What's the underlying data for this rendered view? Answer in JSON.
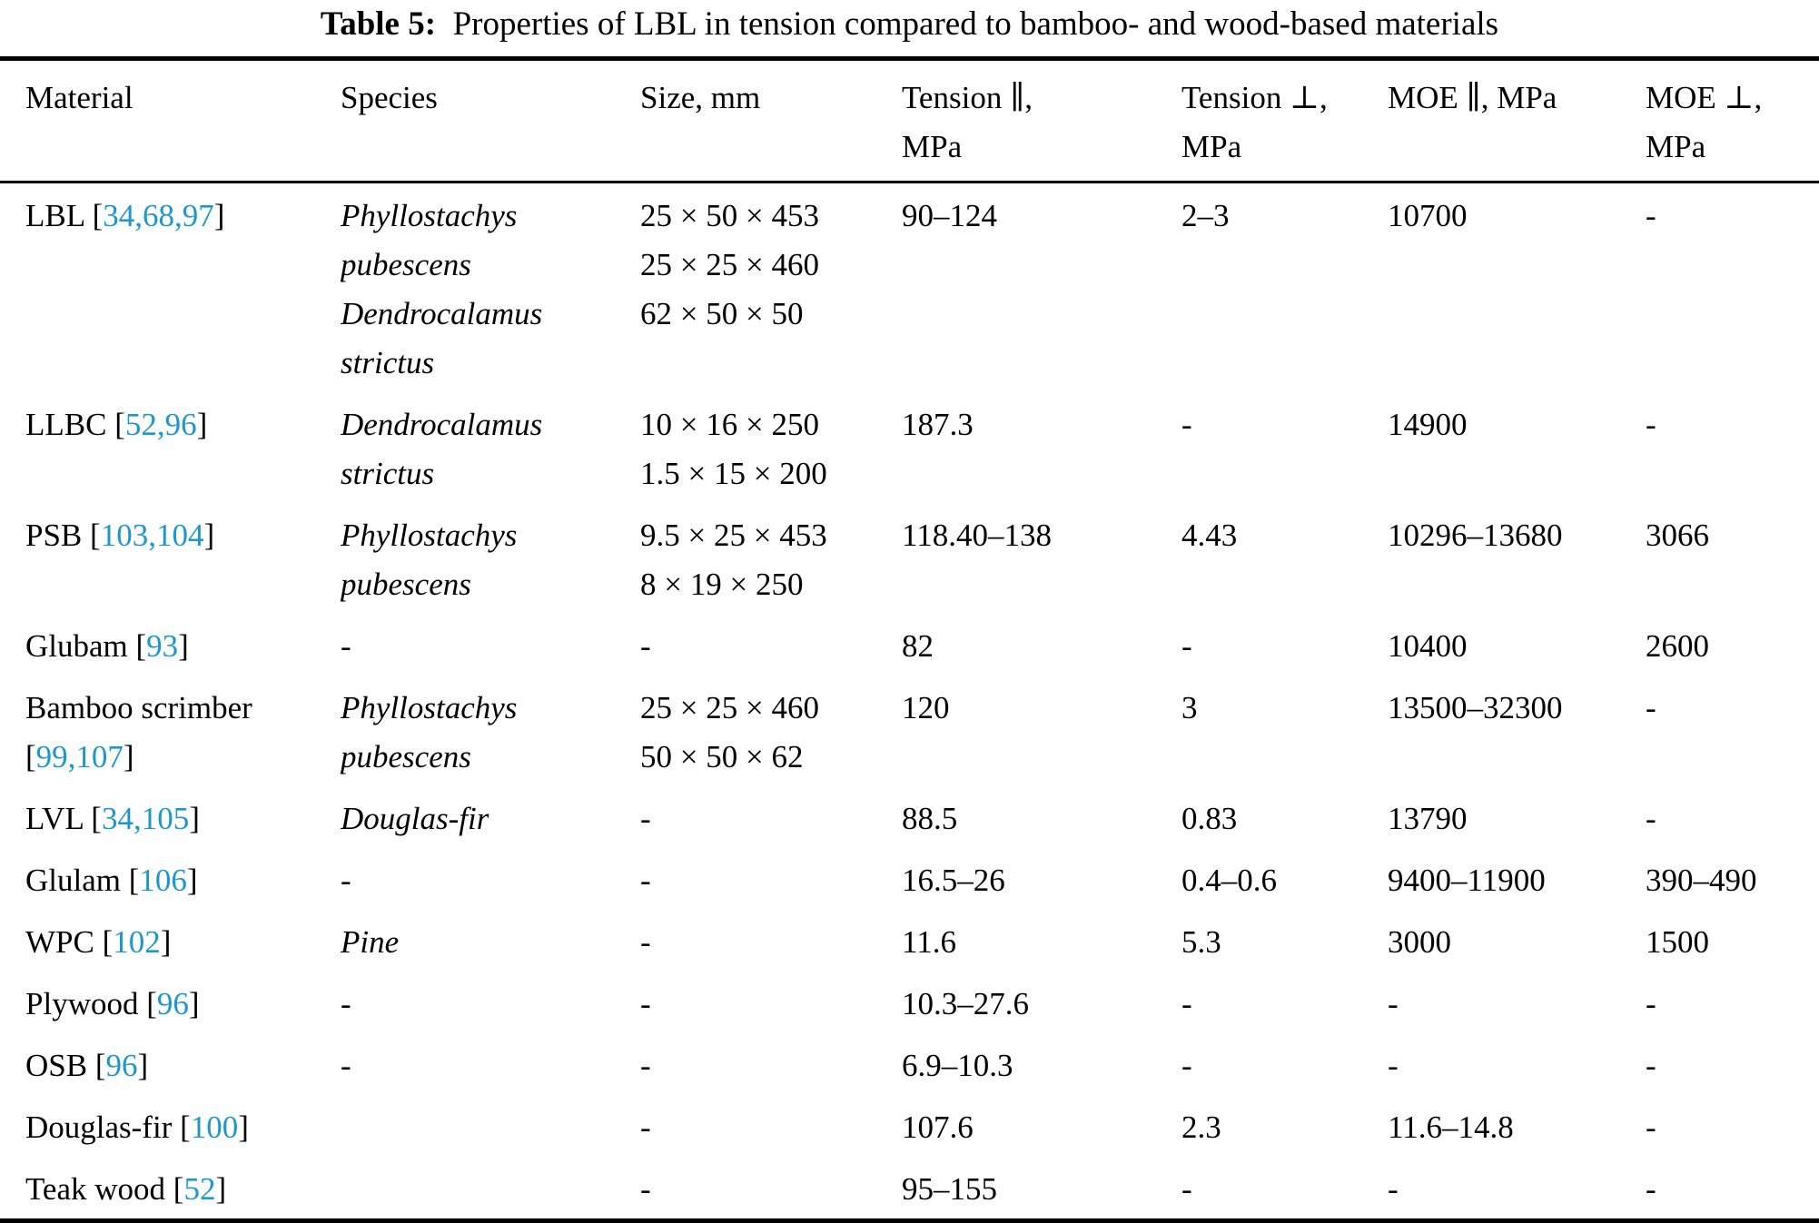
{
  "caption": {
    "label": "Table 5:",
    "text": "Properties of LBL in tension compared to bamboo- and wood-based materials"
  },
  "colors": {
    "citation": "#1e97cd",
    "text": "#000000",
    "rule": "#000000",
    "background": "#ffffff"
  },
  "punct": {
    "open_bracket": "[",
    "close_bracket": "]"
  },
  "columns": [
    "Material",
    "Species",
    "Size, mm",
    "Tension ∥,\nMPa",
    "Tension ⊥,\nMPa",
    "MOE ∥, MPa",
    "MOE ⊥,\nMPa"
  ],
  "rows": [
    {
      "material": "LBL",
      "refs": "34,68,97",
      "species": [
        "Phyllostachys pubescens",
        "Dendrocalamus strictus"
      ],
      "size": [
        "25 × 50 × 453",
        "25 × 25 × 460",
        "62 × 50 × 50"
      ],
      "tension_parallel": "90–124",
      "tension_perp": "2–3",
      "moe_parallel": "10700",
      "moe_perp": "-"
    },
    {
      "material": "LLBC",
      "refs": "52,96",
      "species": [
        "Dendrocalamus strictus"
      ],
      "size": [
        "10 × 16 × 250",
        "1.5 × 15 × 200"
      ],
      "tension_parallel": "187.3",
      "tension_perp": "-",
      "moe_parallel": "14900",
      "moe_perp": "-"
    },
    {
      "material": "PSB",
      "refs": "103,104",
      "species": [
        "Phyllostachys pubescens"
      ],
      "size": [
        "9.5 × 25 × 453",
        "8 × 19 × 250"
      ],
      "tension_parallel": "118.40–138",
      "tension_perp": "4.43",
      "moe_parallel": "10296–13680",
      "moe_perp": "3066"
    },
    {
      "material": "Glubam",
      "refs": "93",
      "species": "-",
      "size": [
        "-"
      ],
      "tension_parallel": "82",
      "tension_perp": "-",
      "moe_parallel": "10400",
      "moe_perp": "2600"
    },
    {
      "material": "Bamboo scrimber",
      "refs": "99,107",
      "species": [
        "Phyllostachys pubescens"
      ],
      "size": [
        "25 × 25 × 460",
        "50 × 50 × 62"
      ],
      "tension_parallel": "120",
      "tension_perp": "3",
      "moe_parallel": "13500–32300",
      "moe_perp": "-"
    },
    {
      "material": "LVL",
      "refs": "34,105",
      "species": [
        "Douglas-fir"
      ],
      "size": [
        "-"
      ],
      "tension_parallel": "88.5",
      "tension_perp": "0.83",
      "moe_parallel": "13790",
      "moe_perp": "-"
    },
    {
      "material": "Glulam",
      "refs": "106",
      "species": "-",
      "size": [
        "-"
      ],
      "tension_parallel": "16.5–26",
      "tension_perp": "0.4–0.6",
      "moe_parallel": "9400–11900",
      "moe_perp": "390–490"
    },
    {
      "material": "WPC",
      "refs": "102",
      "species": [
        "Pine"
      ],
      "size": [
        "-"
      ],
      "tension_parallel": "11.6",
      "tension_perp": "5.3",
      "moe_parallel": "3000",
      "moe_perp": "1500"
    },
    {
      "material": "Plywood",
      "refs": "96",
      "species": "-",
      "size": [
        "-"
      ],
      "tension_parallel": "10.3–27.6",
      "tension_perp": "-",
      "moe_parallel": "-",
      "moe_perp": "-"
    },
    {
      "material": "OSB",
      "refs": "96",
      "species": "-",
      "size": [
        "-"
      ],
      "tension_parallel": "6.9–10.3",
      "tension_perp": "-",
      "moe_parallel": "-",
      "moe_perp": "-"
    },
    {
      "material": "Douglas-fir",
      "refs": "100",
      "species": "",
      "size": [
        "-"
      ],
      "tension_parallel": "107.6",
      "tension_perp": "2.3",
      "moe_parallel": "11.6–14.8",
      "moe_perp": "-"
    },
    {
      "material": "Teak wood",
      "refs": "52",
      "species": "",
      "size": [
        "-"
      ],
      "tension_parallel": "95–155",
      "tension_perp": "-",
      "moe_parallel": "-",
      "moe_perp": "-"
    }
  ]
}
